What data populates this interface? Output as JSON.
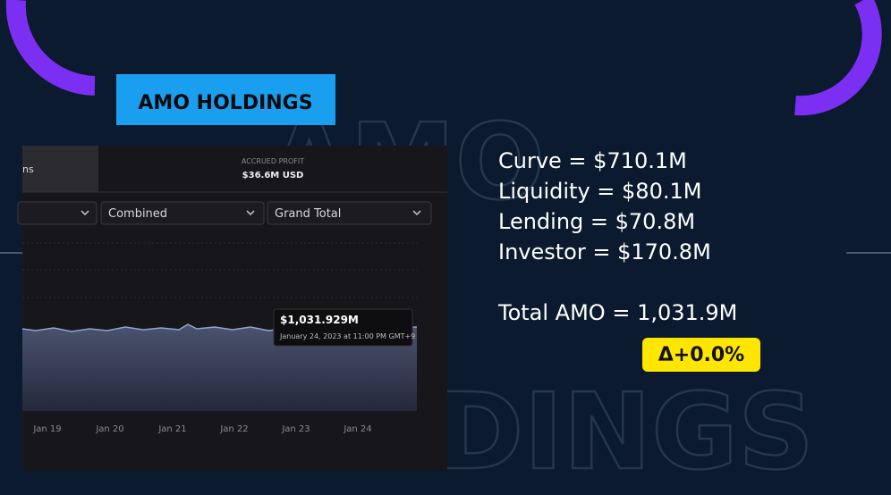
{
  "header": {
    "title": "AMO HOLDINGS"
  },
  "watermark": {
    "top": "AMO",
    "bottom": "HOLDINGS"
  },
  "screenshot": {
    "tab": "ns",
    "accrued_label": "ACCRUED PROFIT",
    "accrued_value": "$36.6M USD",
    "dropdowns": [
      "Combined",
      "Grand Total"
    ],
    "x_labels": [
      "Jan 19",
      "Jan 20",
      "Jan 21",
      "Jan 22",
      "Jan 23",
      "Jan 24"
    ],
    "tooltip": {
      "value": "$1,031.929M",
      "date": "January 24, 2023 at 11:00 PM GMT+9"
    }
  },
  "stats": {
    "lines": [
      "Curve = $710.1M",
      "Liquidity = $80.1M",
      "Lending = $70.8M",
      "Investor = $170.8M"
    ],
    "total": "Total AMO = 1,031.9M",
    "change": "Δ+0.0%"
  }
}
